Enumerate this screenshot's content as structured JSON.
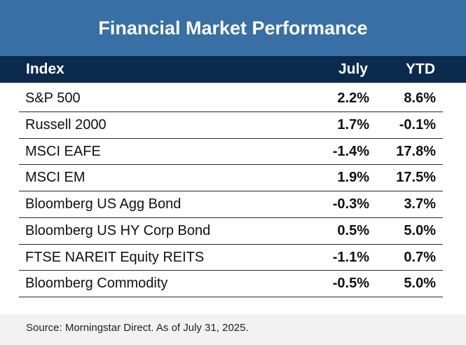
{
  "title": "Financial Market Performance",
  "columns": {
    "index": "Index",
    "july": "July",
    "ytd": "YTD"
  },
  "rows": [
    {
      "name": "S&P 500",
      "july": "2.2%",
      "ytd": "8.6%"
    },
    {
      "name": "Russell 2000",
      "july": "1.7%",
      "ytd": "-0.1%"
    },
    {
      "name": "MSCI EAFE",
      "july": "-1.4%",
      "ytd": "17.8%"
    },
    {
      "name": "MSCI EM",
      "july": "1.9%",
      "ytd": "17.5%"
    },
    {
      "name": "Bloomberg US Agg Bond",
      "july": "-0.3%",
      "ytd": "3.7%"
    },
    {
      "name": "Bloomberg US HY Corp Bond",
      "july": "0.5%",
      "ytd": "5.0%"
    },
    {
      "name": "FTSE NAREIT Equity REITS",
      "july": "-1.1%",
      "ytd": "0.7%"
    },
    {
      "name": "Bloomberg Commodity",
      "july": "-0.5%",
      "ytd": "5.0%"
    }
  ],
  "footer": "Source: Morningstar Direct. As of July 31, 2025.",
  "colors": {
    "title_bg": "#386fa4",
    "header_bg": "#0b2a4e",
    "footer_bg": "#f2f2f2"
  }
}
